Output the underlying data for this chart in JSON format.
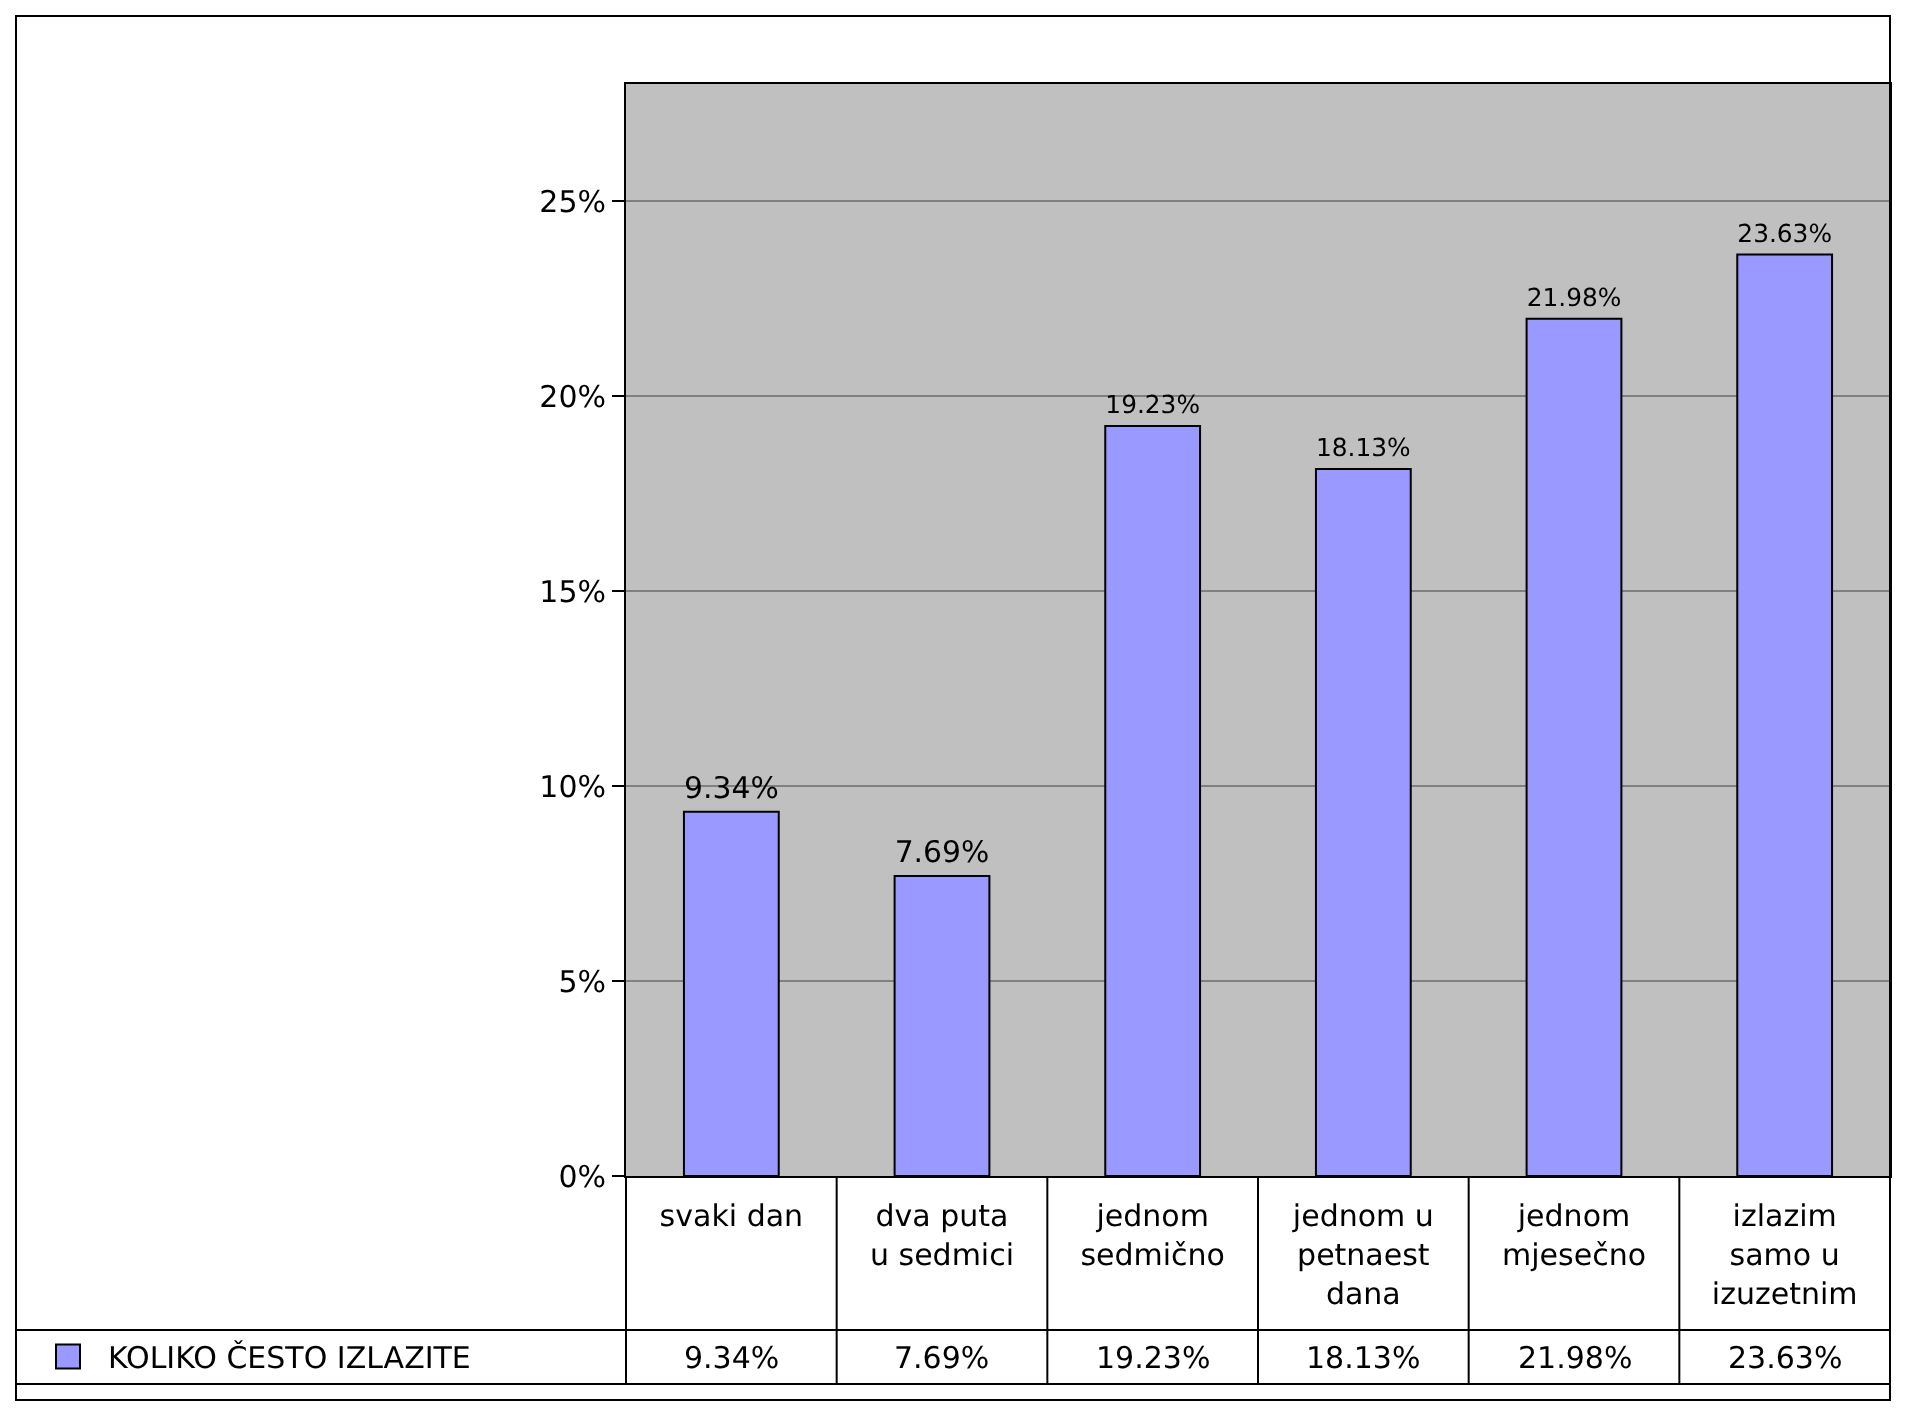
{
  "chart_data": {
    "type": "bar",
    "categories": [
      "svaki dan",
      "dva puta u sedmici",
      "jednom sedmično",
      "jednom u petnaest dana",
      "jednom mjesečno",
      "izlazim samo u izuzetnim"
    ],
    "series": [
      {
        "name": "KOLIKO ČESTO IZLAZITE",
        "color": "#9999ff",
        "values": [
          9.34,
          7.69,
          19.23,
          18.13,
          21.98,
          23.63
        ],
        "value_labels": [
          "9.34%",
          "7.69%",
          "19.23%",
          "18.13%",
          "21.98%",
          "23.63%"
        ]
      }
    ],
    "ylim": [
      0,
      28
    ],
    "yticks": [
      {
        "value": 0,
        "label": "0%"
      },
      {
        "value": 5,
        "label": "5%"
      },
      {
        "value": 10,
        "label": "10%"
      },
      {
        "value": 15,
        "label": "15%"
      },
      {
        "value": 20,
        "label": "20%"
      },
      {
        "value": 25,
        "label": "25%"
      }
    ],
    "grid": "y",
    "legend": "bottom left"
  }
}
